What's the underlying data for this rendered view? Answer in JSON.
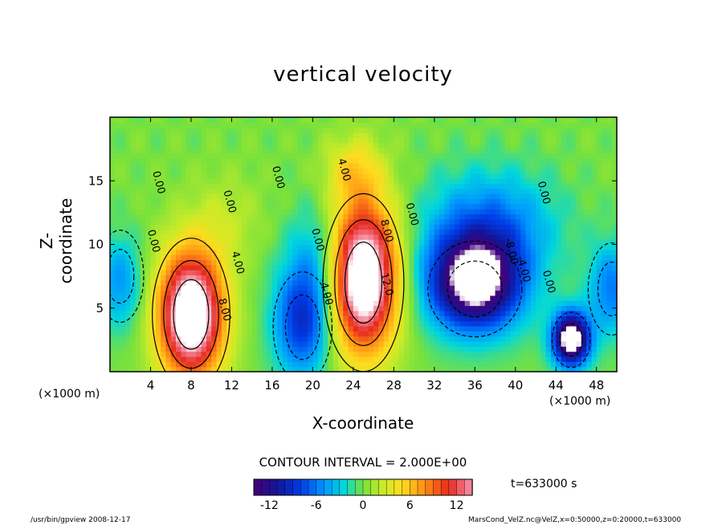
{
  "chart_data": {
    "type": "heatmap",
    "title": "vertical velocity",
    "xlabel": "X-coordinate",
    "ylabel": "Z-coordinate",
    "x_unit": "(×1000 m)",
    "xlim": [
      0,
      50
    ],
    "ylim": [
      0,
      20
    ],
    "x_ticks": [
      4,
      8,
      12,
      16,
      20,
      24,
      28,
      32,
      36,
      40,
      44,
      48
    ],
    "y_ticks": [
      5,
      10,
      15
    ],
    "contour_interval_text": "CONTOUR INTERVAL = 2.000E+00",
    "colorbar": {
      "range": [
        -14,
        14
      ],
      "ticks": [
        -12,
        -6,
        0,
        6,
        12
      ]
    },
    "contour_labels": [
      {
        "text": "0.00",
        "x": 4.0,
        "z": 10.2
      },
      {
        "text": "0.00",
        "x": 4.5,
        "z": 14.8
      },
      {
        "text": "0.00",
        "x": 11.5,
        "z": 13.3
      },
      {
        "text": "0.00",
        "x": 16.3,
        "z": 15.2
      },
      {
        "text": "0.00",
        "x": 20.2,
        "z": 10.3
      },
      {
        "text": "4.00",
        "x": 12.3,
        "z": 8.5
      },
      {
        "text": "8.00",
        "x": 11.0,
        "z": 4.8
      },
      {
        "text": "-4.00",
        "x": 21.0,
        "z": 6.2
      },
      {
        "text": "4.00",
        "x": 22.8,
        "z": 15.8
      },
      {
        "text": "8.00",
        "x": 27.0,
        "z": 11.0
      },
      {
        "text": "12.0",
        "x": 27.0,
        "z": 6.8
      },
      {
        "text": "0.00",
        "x": 29.5,
        "z": 12.3
      },
      {
        "text": "-8.00",
        "x": 39.3,
        "z": 9.4
      },
      {
        "text": "-4.00",
        "x": 40.5,
        "z": 8.0
      },
      {
        "text": "0.00",
        "x": 42.5,
        "z": 14.0
      },
      {
        "text": "0.00",
        "x": 43.0,
        "z": 7.0
      }
    ],
    "features": [
      {
        "kind": "updraft",
        "x": 8.0,
        "z": 4.5,
        "peak": 15
      },
      {
        "kind": "updraft",
        "x": 25.0,
        "z": 7.0,
        "peak": 15
      },
      {
        "kind": "downdraft",
        "x": 19.0,
        "z": 3.5,
        "peak": -8
      },
      {
        "kind": "downdraft",
        "x": 36.0,
        "z": 6.5,
        "peak": -15
      },
      {
        "kind": "downdraft",
        "x": 45.5,
        "z": 2.5,
        "peak": -15
      },
      {
        "kind": "downdraft",
        "x": 1.0,
        "z": 7.5,
        "peak": -5
      },
      {
        "kind": "downdraft",
        "x": 49.5,
        "z": 6.5,
        "peak": -6
      }
    ]
  },
  "annotations": {
    "time": "t=633000 s",
    "footer_left": "/usr/bin/gpview   2008-12-17",
    "footer_right": "MarsCond_VelZ.nc@VelZ,x=0:50000,z=0:20000,t=633000"
  },
  "colors": {
    "negative_extreme": "#4b0082",
    "zero": "#7fe040",
    "positive_extreme": "#ff8fa8",
    "saturated": "#ffffff"
  }
}
